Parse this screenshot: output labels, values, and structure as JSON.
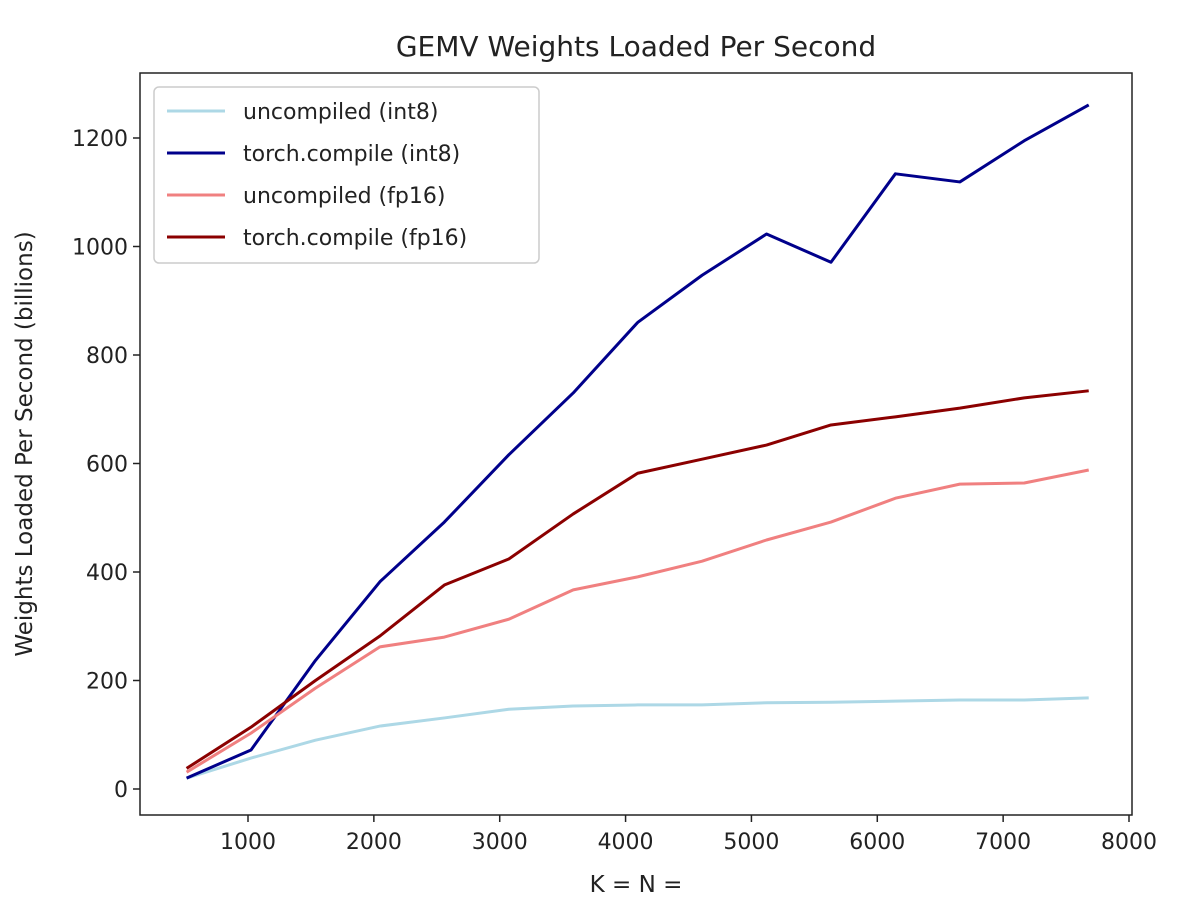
{
  "chart_data": {
    "type": "line",
    "title": "GEMV Weights Loaded Per Second",
    "xlabel": "K = N =",
    "ylabel": "Weights Loaded Per Second (billions)",
    "xlim": [
      200,
      8000
    ],
    "ylim": [
      -50,
      1310
    ],
    "xticks": [
      1000,
      2000,
      3000,
      4000,
      5000,
      6000,
      7000,
      8000
    ],
    "yticks": [
      0,
      200,
      400,
      600,
      800,
      1000,
      1200
    ],
    "grid": false,
    "legend_position": "top-left",
    "x": [
      512,
      1024,
      1536,
      2048,
      2560,
      3072,
      3584,
      4096,
      4608,
      5120,
      5632,
      6144,
      6656,
      7168,
      7680
    ],
    "series": [
      {
        "name": "uncompiled (int8)",
        "color": "#add8e6",
        "values": [
          20,
          57,
          90,
          116,
          131,
          147,
          153,
          155,
          155,
          159,
          160,
          162,
          164,
          164,
          168
        ]
      },
      {
        "name": "torch.compile (int8)",
        "color": "#00008b",
        "values": [
          20,
          72,
          237,
          382,
          492,
          616,
          730,
          860,
          947,
          1023,
          971,
          1134,
          1119,
          1195,
          1261
        ]
      },
      {
        "name": "uncompiled (fp16)",
        "color": "#f08080",
        "values": [
          31,
          103,
          186,
          262,
          280,
          313,
          367,
          391,
          420,
          459,
          492,
          536,
          562,
          564,
          588
        ]
      },
      {
        "name": "torch.compile (fp16)",
        "color": "#8b0000",
        "values": [
          38,
          114,
          200,
          282,
          376,
          424,
          507,
          582,
          608,
          634,
          671,
          686,
          702,
          721,
          734
        ]
      }
    ]
  }
}
